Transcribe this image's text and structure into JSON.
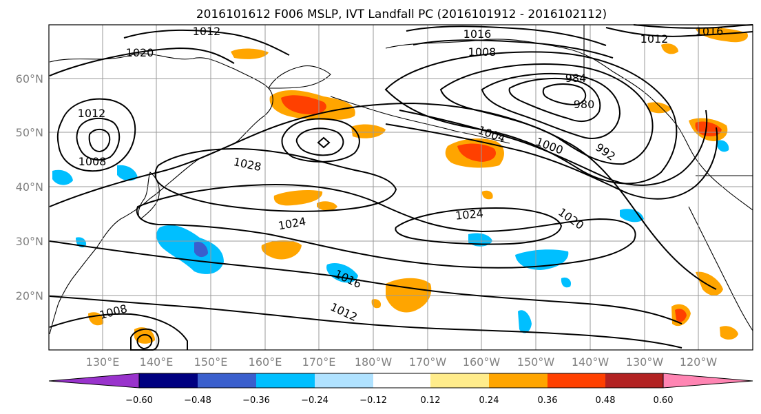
{
  "title": "2016101612 F006 MSLP, IVT Landfall PC (2016101912 - 2016102112)",
  "lat_labels": [
    "60°N",
    "50°N",
    "40°N",
    "30°N",
    "20°N"
  ],
  "lon_labels": [
    "130°E",
    "140°E",
    "150°E",
    "160°E",
    "170°E",
    "180°W",
    "170°W",
    "160°W",
    "150°W",
    "140°W",
    "130°W",
    "120°W"
  ],
  "colorbar": {
    "colors": [
      "#9933cc",
      "#000080",
      "#3a5fcd",
      "#00bfff",
      "#b0e2ff",
      "#ffffff",
      "#ffec8b",
      "#ffa500",
      "#ff4000",
      "#b22222",
      "#ff85b3"
    ],
    "tick_labels": [
      "−0.60",
      "−0.48",
      "−0.36",
      "−0.24",
      "−0.12",
      "0.12",
      "0.24",
      "0.36",
      "0.48",
      "0.60"
    ]
  },
  "contour_labels": [
    "1012",
    "1020",
    "1016",
    "1008",
    "984",
    "980",
    "1012",
    "1016",
    "1012",
    "1008",
    "1004",
    "1000",
    "992",
    "1028",
    "1024",
    "1024",
    "1020",
    "1016",
    "1012",
    "1008"
  ]
}
